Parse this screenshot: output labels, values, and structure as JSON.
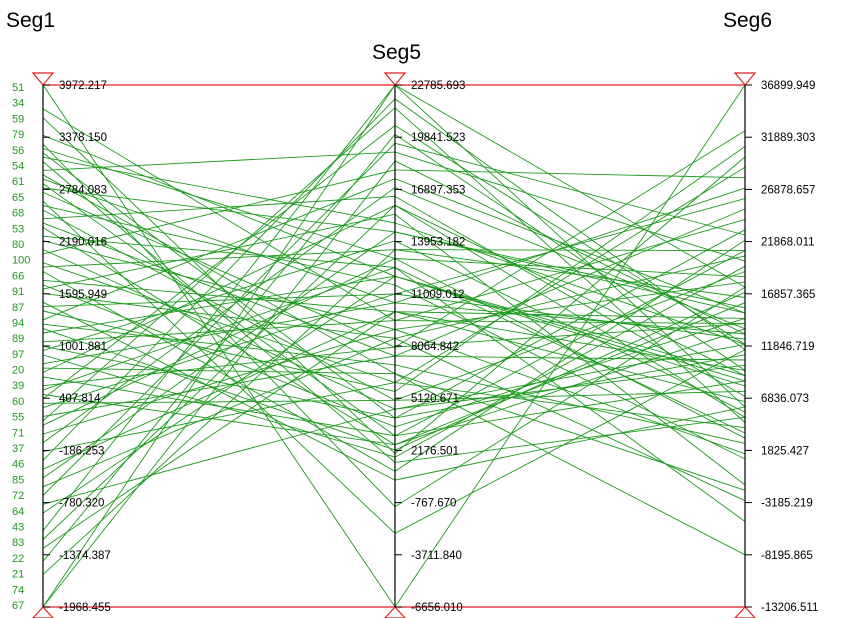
{
  "chart_data": {
    "type": "parallel-coordinates",
    "title": "",
    "axes": [
      {
        "name": "Seg1",
        "min": -1968.455,
        "max": 3972.217,
        "ticks": [
          "3972.217",
          "3378.150",
          "2784.083",
          "2190.016",
          "1595.949",
          "1001.881",
          "407.814",
          "-186.253",
          "-780.320",
          "-1374.387",
          "-1968.455"
        ]
      },
      {
        "name": "Seg5",
        "min": -6656.01,
        "max": 22785.693,
        "ticks": [
          "22785.693",
          "19841.523",
          "16897.353",
          "13953.182",
          "11009.012",
          "8064.842",
          "5120.671",
          "2176.501",
          "-767.670",
          "-3711.840",
          "-6656.010"
        ]
      },
      {
        "name": "Seg6",
        "min": -13206.511,
        "max": 36899.949,
        "ticks": [
          "36899.949",
          "31889.303",
          "26878.657",
          "21868.011",
          "16857.365",
          "11846.719",
          "6836.073",
          "1825.427",
          "-3185.219",
          "-8195.865",
          "-13206.511"
        ]
      }
    ],
    "case_labels": [
      "51",
      "34",
      "59",
      "79",
      "56",
      "54",
      "61",
      "65",
      "68",
      "53",
      "80",
      "100",
      "66",
      "91",
      "87",
      "94",
      "89",
      "97",
      "20",
      "39",
      "60",
      "55",
      "71",
      "37",
      "46",
      "85",
      "72",
      "64",
      "43",
      "83",
      "22",
      "21",
      "74",
      "67"
    ],
    "line_color": "#1d9a1d",
    "axis_end_color": "#dd2222",
    "series": [
      {
        "values": [
          3972.217,
          -6656.01,
          36899.949
        ]
      },
      {
        "values": [
          3700,
          9500,
          14000
        ]
      },
      {
        "values": [
          3600,
          2000,
          30000
        ]
      },
      {
        "values": [
          3400,
          12000,
          9000
        ]
      },
      {
        "values": [
          3300,
          -1000,
          17500
        ]
      },
      {
        "values": [
          3250,
          13000,
          3000
        ]
      },
      {
        "values": [
          3200,
          4000,
          23000
        ]
      },
      {
        "values": [
          3150,
          15000,
          12000
        ]
      },
      {
        "values": [
          3100,
          1500,
          5000
        ]
      },
      {
        "values": [
          3000,
          19000,
          20000
        ]
      },
      {
        "values": [
          2950,
          6500,
          -2000
        ]
      },
      {
        "values": [
          2900,
          10500,
          27000
        ]
      },
      {
        "values": [
          2850,
          3000,
          8500
        ]
      },
      {
        "values": [
          2800,
          14500,
          15500
        ]
      },
      {
        "values": [
          2750,
          8000,
          32500
        ]
      },
      {
        "values": [
          2650,
          -2500,
          11500
        ]
      },
      {
        "values": [
          2600,
          11500,
          1000
        ]
      },
      {
        "values": [
          2550,
          5000,
          19000
        ]
      },
      {
        "values": [
          2450,
          16500,
          7000
        ]
      },
      {
        "values": [
          2400,
          7500,
          25000
        ]
      },
      {
        "values": [
          2350,
          2500,
          13500
        ]
      },
      {
        "values": [
          2250,
          12500,
          -5000
        ]
      },
      {
        "values": [
          2200,
          9000,
          18000
        ]
      },
      {
        "values": [
          2100,
          4500,
          10000
        ]
      },
      {
        "values": [
          2050,
          18000,
          28000
        ]
      },
      {
        "values": [
          1950,
          6000,
          4000
        ]
      },
      {
        "values": [
          1900,
          13500,
          16500
        ]
      },
      {
        "values": [
          1850,
          1000,
          22000
        ]
      },
      {
        "values": [
          1750,
          10000,
          9500
        ]
      },
      {
        "values": [
          1700,
          3500,
          14500
        ]
      },
      {
        "values": [
          1650,
          15500,
          -1500
        ]
      },
      {
        "values": [
          1600,
          8500,
          20500
        ]
      },
      {
        "values": [
          1500,
          500,
          6000
        ]
      },
      {
        "values": [
          1450,
          11000,
          12500
        ]
      },
      {
        "values": [
          1400,
          5500,
          31000
        ]
      },
      {
        "values": [
          1300,
          17500,
          15000
        ]
      },
      {
        "values": [
          1250,
          7000,
          2500
        ]
      },
      {
        "values": [
          1200,
          2200,
          17000
        ]
      },
      {
        "values": [
          1150,
          12000,
          8000
        ]
      },
      {
        "values": [
          1050,
          9500,
          24000
        ]
      },
      {
        "values": [
          1000,
          4000,
          11000
        ]
      },
      {
        "values": [
          950,
          14000,
          5500
        ]
      },
      {
        "values": [
          900,
          1800,
          19500
        ]
      },
      {
        "values": [
          800,
          10500,
          13000
        ]
      },
      {
        "values": [
          750,
          6500,
          -8195
        ]
      },
      {
        "values": [
          700,
          16000,
          9000
        ]
      },
      {
        "values": [
          650,
          3000,
          21000
        ]
      },
      {
        "values": [
          550,
          8000,
          14000
        ]
      },
      {
        "values": [
          500,
          12500,
          3500
        ]
      },
      {
        "values": [
          450,
          2500,
          16000
        ]
      },
      {
        "values": [
          400,
          20500,
          12000
        ]
      },
      {
        "values": [
          350,
          5000,
          7500
        ]
      },
      {
        "values": [
          300,
          11000,
          26000
        ]
      },
      {
        "values": [
          200,
          7500,
          10500
        ]
      },
      {
        "values": [
          150,
          21500,
          4500
        ]
      },
      {
        "values": [
          100,
          13000,
          18500
        ]
      },
      {
        "values": [
          0,
          9000,
          1500
        ]
      },
      {
        "values": [
          -100,
          17000,
          13500
        ]
      },
      {
        "values": [
          -200,
          6000,
          29000
        ]
      },
      {
        "values": [
          -300,
          22000,
          11500
        ]
      },
      {
        "values": [
          -400,
          10000,
          6500
        ]
      },
      {
        "values": [
          -500,
          14500,
          15000
        ]
      },
      {
        "values": [
          -600,
          8500,
          -3000
        ]
      },
      {
        "values": [
          -700,
          19500,
          22500
        ]
      },
      {
        "values": [
          -800,
          4500,
          12000
        ]
      },
      {
        "values": [
          -900,
          12000,
          8500
        ]
      },
      {
        "values": [
          -1100,
          22785.693,
          17500
        ]
      },
      {
        "values": [
          -1200,
          16000,
          5000
        ]
      },
      {
        "values": [
          -1300,
          10000,
          14500
        ]
      },
      {
        "values": [
          -1450,
          20000,
          9500
        ]
      },
      {
        "values": [
          -1600,
          13500,
          21000
        ]
      },
      {
        "values": [
          -1968.455,
          22785.693,
          6000
        ]
      },
      {
        "values": [
          -1968.455,
          18500,
          13000
        ]
      }
    ]
  }
}
